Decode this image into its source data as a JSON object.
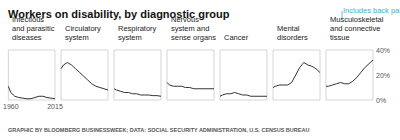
{
  "title": "Workers on disability, by diagnostic group",
  "source": "GRAPHIC BY BLOOMBERG BUSINESSWEEK; DATA: SOCIAL SECURITY ADMINISTRATION, U.S. CENSUS BUREAU",
  "chart_data": [
    {
      "type": "line",
      "title": "Infectious\nand parasitic\ndiseases",
      "color": "#333333",
      "x": [
        1957,
        1960,
        1965,
        1970,
        1975,
        1980,
        1985,
        1990,
        1995,
        2000,
        2005,
        2010,
        2015
      ],
      "values": [
        11,
        6,
        3,
        2,
        1.5,
        1,
        1,
        2,
        3,
        3,
        2,
        1.5,
        1
      ],
      "xlim": [
        1957,
        2015
      ],
      "xticks": [
        1960,
        2015
      ],
      "ylim": [
        0,
        40
      ],
      "grid": false,
      "tick_labels": "x"
    },
    {
      "type": "line",
      "title": "Circulatory\nsystem",
      "color": "#333333",
      "x": [
        1957,
        1960,
        1965,
        1970,
        1975,
        1980,
        1985,
        1990,
        1995,
        2000,
        2005,
        2010,
        2015
      ],
      "values": [
        25,
        28,
        30,
        28,
        25,
        22,
        19,
        16,
        13,
        11,
        10,
        9,
        8
      ],
      "xlim": [
        1957,
        2015
      ],
      "ylim": [
        0,
        40
      ],
      "grid": false,
      "tick_labels": false
    },
    {
      "type": "line",
      "title": "Respiratory\nsystem",
      "color": "#333333",
      "x": [
        1957,
        1960,
        1965,
        1970,
        1975,
        1980,
        1985,
        1990,
        1995,
        2000,
        2005,
        2010,
        2015
      ],
      "values": [
        9,
        8,
        7,
        6,
        6,
        5,
        5,
        4,
        4,
        4,
        3.5,
        3.5,
        3
      ],
      "xlim": [
        1957,
        2015
      ],
      "ylim": [
        0,
        40
      ],
      "grid": false,
      "tick_labels": false
    },
    {
      "type": "line",
      "title": "Nervous\nsystem and\nsense organs",
      "color": "#333333",
      "x": [
        1957,
        1960,
        1965,
        1970,
        1975,
        1980,
        1985,
        1990,
        1995,
        2000,
        2005,
        2010,
        2015
      ],
      "values": [
        14,
        12,
        11,
        11,
        11,
        10,
        10,
        9,
        9,
        9,
        9,
        9,
        9
      ],
      "xlim": [
        1957,
        2015
      ],
      "ylim": [
        0,
        40
      ],
      "grid": false,
      "tick_labels": false
    },
    {
      "type": "line",
      "title": "Cancer",
      "color": "#333333",
      "x": [
        1957,
        1960,
        1965,
        1970,
        1975,
        1980,
        1985,
        1990,
        1995,
        2000,
        2005,
        2010,
        2015
      ],
      "values": [
        3,
        4,
        5,
        5,
        6,
        5,
        4,
        4,
        3,
        3,
        3,
        3,
        3
      ],
      "xlim": [
        1957,
        2015
      ],
      "ylim": [
        0,
        40
      ],
      "grid": false,
      "tick_labels": false
    },
    {
      "type": "line",
      "title": "Mental\ndisorders",
      "color": "#333333",
      "x": [
        1957,
        1960,
        1965,
        1970,
        1975,
        1980,
        1985,
        1990,
        1995,
        2000,
        2005,
        2010,
        2015
      ],
      "values": [
        10,
        11,
        12,
        12,
        12,
        14,
        20,
        26,
        30,
        28,
        27,
        25,
        22
      ],
      "xlim": [
        1957,
        2015
      ],
      "ylim": [
        0,
        40
      ],
      "grid": false,
      "tick_labels": false
    },
    {
      "type": "line",
      "title": "Musculoskeletal\nand connective\ntissue",
      "annotation": "Includes back pain",
      "color": "#333333",
      "x": [
        1957,
        1960,
        1965,
        1970,
        1975,
        1980,
        1985,
        1990,
        1995,
        2000,
        2005,
        2010,
        2015
      ],
      "values": [
        11,
        11,
        12,
        13,
        14,
        13,
        13,
        15,
        18,
        22,
        26,
        29,
        32
      ],
      "xlim": [
        1957,
        2015
      ],
      "ylim": [
        0,
        40
      ],
      "yticks": [
        {
          "value": 0,
          "label": "0%"
        },
        {
          "value": 20,
          "label": "20%"
        },
        {
          "value": 40,
          "label": "40%"
        }
      ],
      "grid": false,
      "tick_labels": "y"
    }
  ]
}
